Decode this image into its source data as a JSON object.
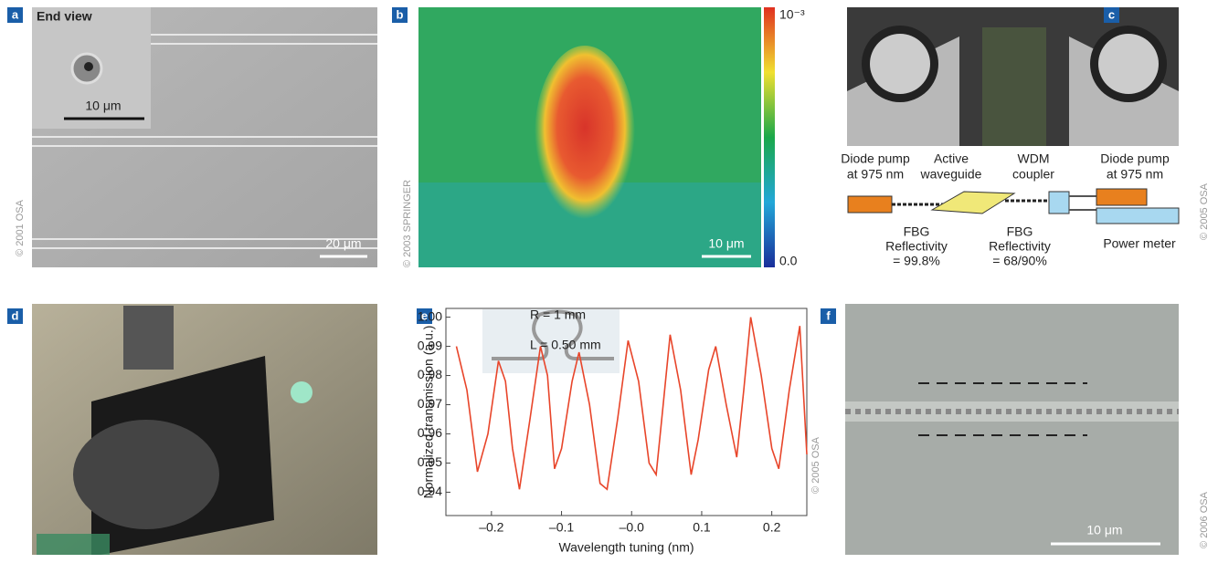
{
  "panels": {
    "a": {
      "label": "a",
      "inset_title": "End view",
      "inset_scale": "10 μm",
      "scale": "20 μm",
      "copyright": "© 2001 OSA"
    },
    "b": {
      "label": "b",
      "colorbar_max": "10⁻³",
      "colorbar_min": "0.0",
      "scale": "10 μm",
      "copyright": "© 2003 SPRINGER"
    },
    "c": {
      "label": "c",
      "labels": [
        [
          "Diode pump",
          "at 975 nm"
        ],
        [
          "Active",
          "waveguide"
        ],
        [
          "WDM",
          "coupler"
        ],
        [
          "Diode pump",
          "at 975 nm"
        ]
      ],
      "fbg1": [
        "FBG",
        "Reflectivity",
        "= 99.8%"
      ],
      "fbg2": [
        "FBG",
        "Reflectivity",
        "= 68/90%"
      ],
      "power_meter": "Power meter",
      "copyright": "© 2005 OSA"
    },
    "d": {
      "label": "d"
    },
    "e": {
      "label": "e",
      "inset_r": "R = 1 mm",
      "inset_l": "L = 0.50 mm",
      "copyright": "© 2005 OSA"
    },
    "f": {
      "label": "f",
      "scale": "10 μm",
      "copyright": "© 2006 OSA"
    }
  },
  "chart_data": {
    "type": "line",
    "x_label": "Wavelength tuning (nm)",
    "y_label": "Normalized transmission (a.u.)",
    "xlim": [
      -0.265,
      0.25
    ],
    "ylim": [
      0.932,
      1.003
    ],
    "xticks": [
      {
        "value": -0.2,
        "label": "–0.2"
      },
      {
        "value": -0.1,
        "label": "–0.1"
      },
      {
        "value": 0,
        "label": "–0.0"
      },
      0.1,
      0.2
    ],
    "yticks": [
      0.94,
      0.95,
      0.96,
      0.97,
      0.98,
      0.99,
      {
        "value": 1,
        "label": "1.00"
      }
    ],
    "series": [
      {
        "color": "#e8452a",
        "x": [
          -0.25,
          -0.235,
          -0.22,
          -0.205,
          -0.19,
          -0.18,
          -0.17,
          -0.16,
          -0.145,
          -0.13,
          -0.12,
          -0.11,
          -0.1,
          -0.085,
          -0.075,
          -0.06,
          -0.045,
          -0.035,
          -0.02,
          -0.005,
          0.01,
          0.025,
          0.035,
          0.045,
          0.055,
          0.07,
          0.085,
          0.095,
          0.11,
          0.12,
          0.135,
          0.15,
          0.16,
          0.17,
          0.185,
          0.2,
          0.21,
          0.225,
          0.24,
          0.25
        ],
        "values": [
          0.99,
          0.975,
          0.947,
          0.96,
          0.985,
          0.978,
          0.955,
          0.941,
          0.965,
          0.99,
          0.98,
          0.948,
          0.955,
          0.978,
          0.988,
          0.97,
          0.943,
          0.941,
          0.965,
          0.992,
          0.978,
          0.95,
          0.946,
          0.97,
          0.994,
          0.975,
          0.946,
          0.958,
          0.982,
          0.99,
          0.97,
          0.952,
          0.975,
          1.0,
          0.98,
          0.955,
          0.948,
          0.975,
          0.997,
          0.953
        ]
      }
    ]
  }
}
